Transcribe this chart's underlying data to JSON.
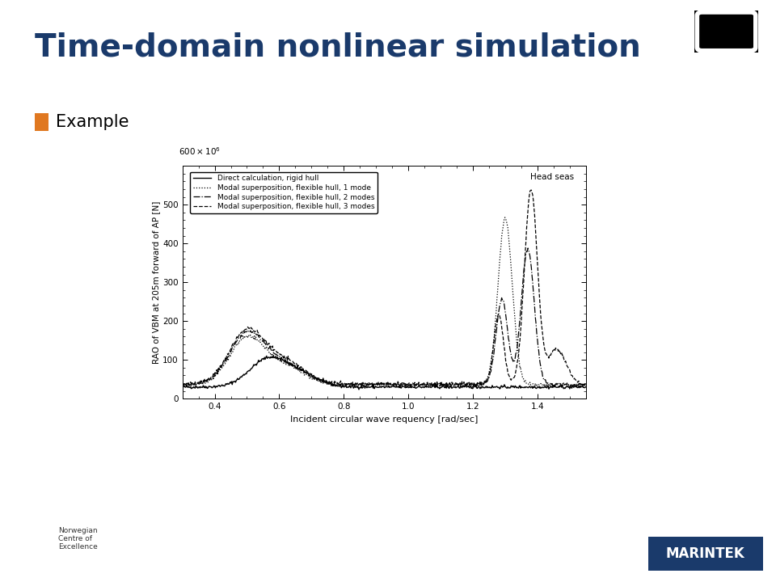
{
  "title": "Time-domain nonlinear simulation",
  "bullet": "Example",
  "title_color": "#1a3a6b",
  "bullet_color": "#e07820",
  "bg_color": "#ffffff",
  "xlabel": "Incident circular wave requency [rad/sec]",
  "ylabel": "RAO of VBM at 205m forward of AP [N]",
  "xlim": [
    0.3,
    1.55
  ],
  "ylim": [
    0,
    600
  ],
  "yticks": [
    0,
    100,
    200,
    300,
    400,
    500
  ],
  "xticks": [
    0.4,
    0.6,
    0.8,
    1.0,
    1.2,
    1.4
  ],
  "annotation": "Head seas",
  "legend_entries": [
    "Direct calculation, rigid hull",
    "Modal superposition, flexible hull, 1 mode",
    "Modal superposition, flexible hull, 2 modes",
    "Modal superposition, flexible hull, 3 modes"
  ],
  "line_styles": [
    "-",
    ":",
    "-.",
    "--"
  ],
  "line_colors": [
    "black",
    "black",
    "black",
    "black"
  ],
  "marintek_color": "#1a3a6b",
  "marintek_text_color": "#ffffff"
}
